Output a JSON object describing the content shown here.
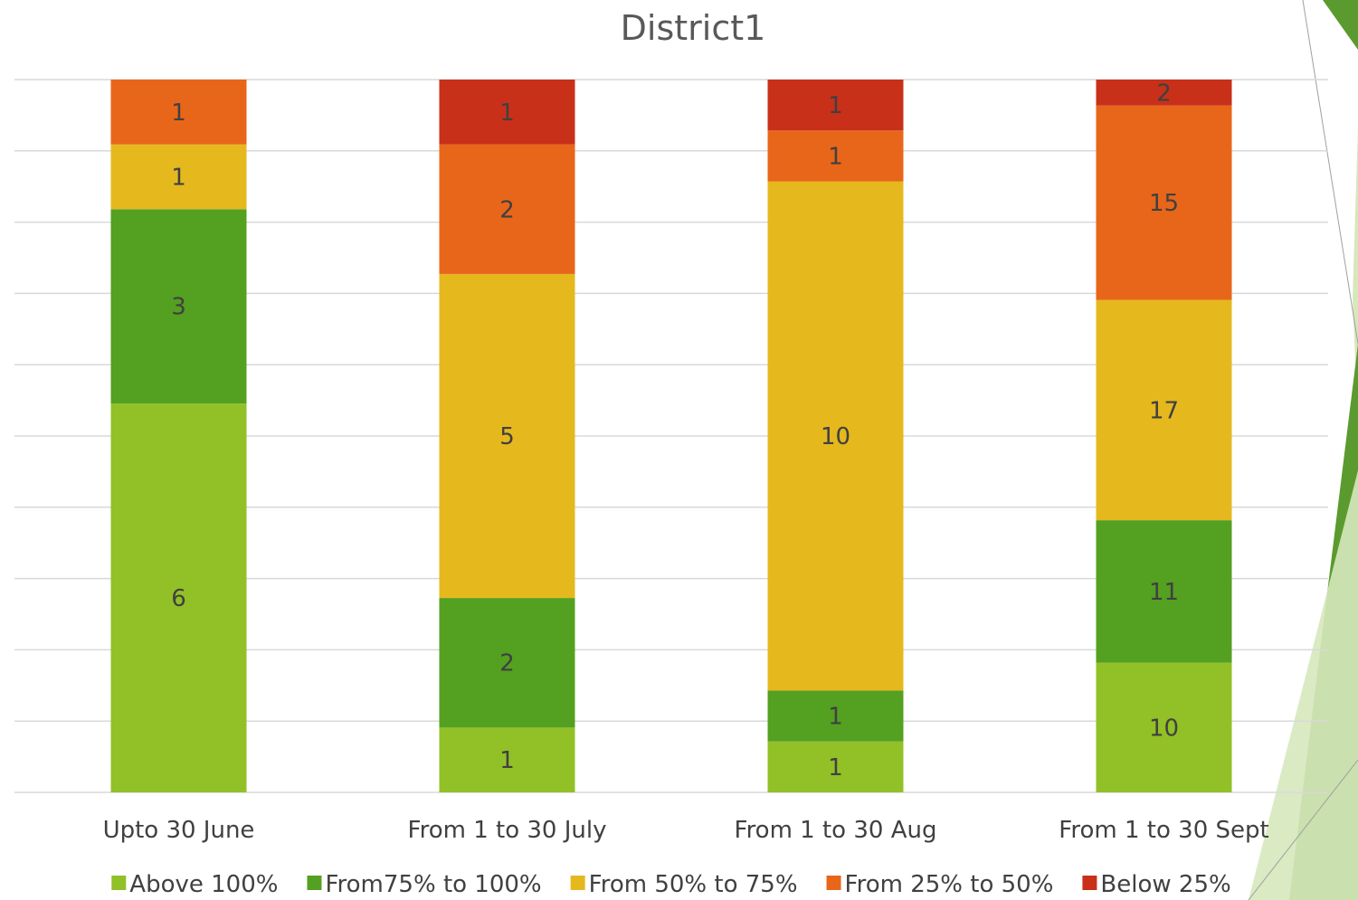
{
  "chart_data": {
    "type": "bar",
    "stacked": "percent",
    "title": "District1",
    "xlabel": "",
    "ylabel": "",
    "ylim": [
      0,
      100
    ],
    "grid": true,
    "legend_position": "bottom",
    "categories": [
      "Upto 30 June",
      "From 1 to 30 July",
      "From 1 to 30 Aug",
      "From 1 to 30 Sept"
    ],
    "series": [
      {
        "name": "Above 100%",
        "color": "#92C027",
        "values": [
          6,
          1,
          1,
          10
        ]
      },
      {
        "name": "From75% to 100%",
        "color": "#54A021",
        "values": [
          3,
          2,
          1,
          11
        ]
      },
      {
        "name": "From 50% to 75%",
        "color": "#E5B81E",
        "values": [
          1,
          5,
          10,
          17
        ]
      },
      {
        "name": "From 25% to 50%",
        "color": "#E8661A",
        "values": [
          1,
          2,
          1,
          15
        ]
      },
      {
        "name": "Below 25%",
        "color": "#C8301A",
        "values": [
          0,
          1,
          1,
          2
        ]
      }
    ]
  },
  "decoration": {
    "accent_dark": "#5B9A2E",
    "accent_light": "#D6E8BC"
  }
}
